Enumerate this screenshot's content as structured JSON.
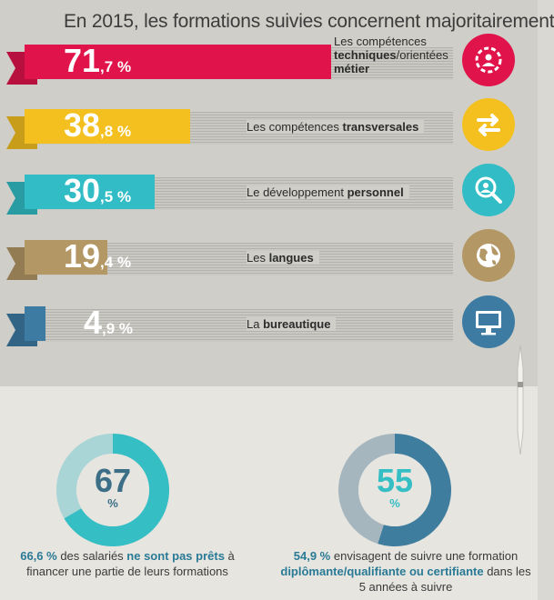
{
  "title": "En 2015, les formations suivies concernent majoritairement",
  "chart_data": [
    {
      "type": "bar",
      "orientation": "horizontal",
      "categories": [
        "Les compétences techniques/orientées métier",
        "Les compétences transversales",
        "Le développement personnel",
        "Les langues",
        "La bureautique"
      ],
      "values": [
        71.7,
        38.8,
        30.5,
        19.4,
        4.9
      ],
      "value_labels": [
        {
          "int": "71",
          "dec": ",7 %"
        },
        {
          "int": "38",
          "dec": ",8 %"
        },
        {
          "int": "30",
          "dec": ",5 %"
        },
        {
          "int": "19",
          "dec": ",4 %"
        },
        {
          "int": "4",
          "dec": ",9 %"
        }
      ],
      "colors": [
        "#e0134b",
        "#f4c020",
        "#32bdc6",
        "#b39765",
        "#3d7ba2"
      ],
      "icons": [
        "gear-person-icon",
        "swap-arrows-icon",
        "magnifier-person-icon",
        "globe-icon",
        "computer-icon"
      ],
      "xlim": [
        0,
        100
      ]
    },
    {
      "type": "pie",
      "variant": "donut",
      "values": [
        66.6,
        33.4
      ],
      "display_value": "67",
      "unit": "%",
      "colors": [
        "#35bec4",
        "#a9d5d6"
      ]
    },
    {
      "type": "pie",
      "variant": "donut",
      "values": [
        54.9,
        45.1
      ],
      "display_value": "55",
      "unit": "%",
      "colors": [
        "#3f7d9e",
        "#a6b6be"
      ]
    }
  ],
  "rows": [
    {
      "label_plain": "Les compétences ",
      "label_bold": "techniques",
      "label_tail": "/orientées ",
      "label_bold2": "métier"
    },
    {
      "label_plain": "Les compétences ",
      "label_bold": "transversales"
    },
    {
      "label_plain": "Le développement ",
      "label_bold": "personnel"
    },
    {
      "label_plain": "Les ",
      "label_bold": "langues"
    },
    {
      "label_plain": "La ",
      "label_bold": "bureautique"
    }
  ],
  "captions": {
    "left": {
      "p1": "66,6 %",
      "p2": " des salariés ",
      "p3": "ne sont pas prêts",
      "p4": " à financer une partie de leurs formations"
    },
    "right": {
      "p1": "54,9 %",
      "p2": " envisagent de suivre une formation ",
      "p3": "diplômante/qualifiante ou certifiante",
      "p4": " dans les 5 années à suivre"
    }
  }
}
